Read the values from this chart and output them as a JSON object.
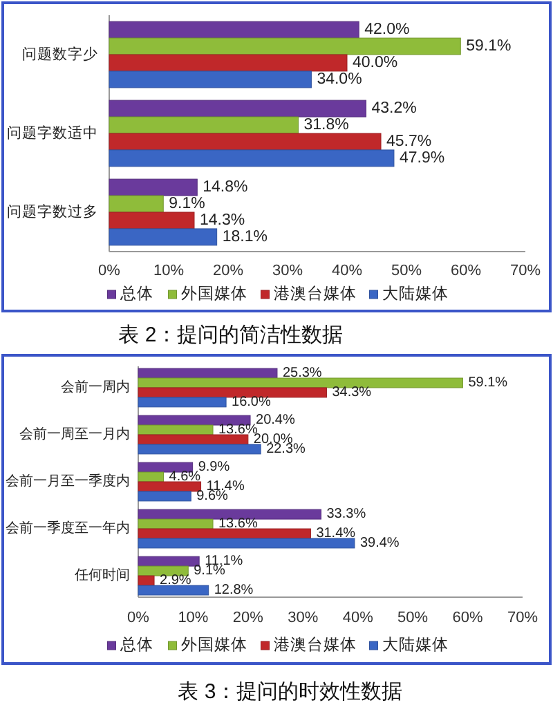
{
  "chart_data": [
    {
      "type": "bar",
      "orientation": "horizontal",
      "title": "表 2：提问的简洁性数据",
      "categories": [
        "问题数字少",
        "问题字数适中",
        "问题字数过多"
      ],
      "series": [
        {
          "name": "总体",
          "color": "#6a3a9c",
          "values": [
            42.0,
            43.2,
            14.8
          ],
          "value_labels": [
            "42.0%",
            "43.2%",
            "14.8%"
          ]
        },
        {
          "name": "外国媒体",
          "color": "#8fbc3a",
          "values": [
            59.1,
            31.8,
            9.1
          ],
          "value_labels": [
            "59.1%",
            "31.8%",
            "9.1%"
          ]
        },
        {
          "name": "港澳台媒体",
          "color": "#c0282a",
          "values": [
            40.0,
            45.7,
            14.3
          ],
          "value_labels": [
            "40.0%",
            "45.7%",
            "14.3%"
          ]
        },
        {
          "name": "大陆媒体",
          "color": "#3a66c4",
          "values": [
            34.0,
            47.9,
            18.1
          ],
          "value_labels": [
            "34.0%",
            "47.9%",
            "18.1%"
          ]
        }
      ],
      "xlim": [
        0,
        70
      ],
      "xticks": [
        {
          "value": 0,
          "label": "0%"
        },
        {
          "value": 10,
          "label": "10%"
        },
        {
          "value": 20,
          "label": "20%"
        },
        {
          "value": 30,
          "label": "30%"
        },
        {
          "value": 40,
          "label": "40%"
        },
        {
          "value": 50,
          "label": "50%"
        },
        {
          "value": 60,
          "label": "60%"
        },
        {
          "value": 70,
          "label": "70%"
        }
      ],
      "legend": "bottom"
    },
    {
      "type": "bar",
      "orientation": "horizontal",
      "title": "表 3：提问的时效性数据",
      "categories": [
        "会前一周内",
        "会前一周至一月内",
        "会前一月至一季度内",
        "会前一季度至一年内",
        "任何时间"
      ],
      "series": [
        {
          "name": "总体",
          "color": "#6a3a9c",
          "values": [
            25.3,
            20.4,
            9.9,
            33.3,
            11.1
          ],
          "value_labels": [
            "25.3%",
            "20.4%",
            "9.9%",
            "33.3%",
            "11.1%"
          ]
        },
        {
          "name": "外国媒体",
          "color": "#8fbc3a",
          "values": [
            59.1,
            13.6,
            4.6,
            13.6,
            9.1
          ],
          "value_labels": [
            "59.1%",
            "13.6%",
            "4.6%",
            "13.6%",
            "9.1%"
          ]
        },
        {
          "name": "港澳台媒体",
          "color": "#c0282a",
          "values": [
            34.3,
            20.0,
            11.4,
            31.4,
            2.9
          ],
          "value_labels": [
            "34.3%",
            "20.0%",
            "11.4%",
            "31.4%",
            "2.9%"
          ]
        },
        {
          "name": "大陆媒体",
          "color": "#3a66c4",
          "values": [
            16.0,
            22.3,
            9.6,
            39.4,
            12.8
          ],
          "value_labels": [
            "16.0%",
            "22.3%",
            "9.6%",
            "39.4%",
            "12.8%"
          ]
        }
      ],
      "xlim": [
        0,
        70
      ],
      "xticks": [
        {
          "value": 0,
          "label": "0%"
        },
        {
          "value": 10,
          "label": "10%"
        },
        {
          "value": 20,
          "label": "20%"
        },
        {
          "value": 30,
          "label": "30%"
        },
        {
          "value": 40,
          "label": "40%"
        },
        {
          "value": 50,
          "label": "50%"
        },
        {
          "value": 60,
          "label": "60%"
        },
        {
          "value": 70,
          "label": "70%"
        }
      ],
      "legend": "bottom"
    }
  ]
}
